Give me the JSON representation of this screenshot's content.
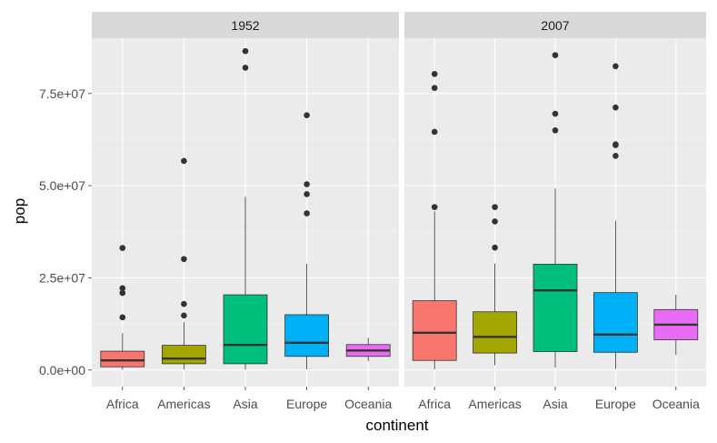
{
  "chart_data": {
    "type": "boxplot",
    "facet_by": "year",
    "xlabel": "continent",
    "ylabel": "pop",
    "ylim": [
      -4500000,
      90000000
    ],
    "y_ticks": [
      {
        "value": 0,
        "label": "0.0e+00"
      },
      {
        "value": 25000000,
        "label": "2.5e+07"
      },
      {
        "value": 50000000,
        "label": "5.0e+07"
      },
      {
        "value": 75000000,
        "label": "7.5e+07"
      }
    ],
    "categories": [
      "Africa",
      "Americas",
      "Asia",
      "Europe",
      "Oceania"
    ],
    "colors": {
      "Africa": "#F8766D",
      "Americas": "#A3A500",
      "Asia": "#00BF7D",
      "Europe": "#00B0F6",
      "Oceania": "#E76BF3"
    },
    "panels": [
      {
        "strip": "1952",
        "boxes": [
          {
            "category": "Africa",
            "whisker_low": 60000,
            "q1": 870000,
            "median": 2600000,
            "q3": 5100000,
            "whisker_high": 10000000,
            "outliers": [
              14300000,
              20900000,
              22200000,
              33100000
            ]
          },
          {
            "category": "Americas",
            "whisker_low": 150000,
            "q1": 1700000,
            "median": 3100000,
            "q3": 6700000,
            "whisker_high": 13000000,
            "outliers": [
              14800000,
              17900000,
              30100000,
              56700000
            ]
          },
          {
            "category": "Asia",
            "whisker_low": 120000,
            "q1": 1700000,
            "median": 6800000,
            "q3": 20400000,
            "whisker_high": 47000000,
            "outliers": [
              82000000,
              86500000
            ]
          },
          {
            "category": "Europe",
            "whisker_low": 150000,
            "q1": 3700000,
            "median": 7400000,
            "q3": 15000000,
            "whisker_high": 28800000,
            "outliers": [
              42500000,
              47700000,
              50400000,
              69100000
            ]
          },
          {
            "category": "Oceania",
            "whisker_low": 2400000,
            "q1": 3700000,
            "median": 5300000,
            "q3": 6900000,
            "whisker_high": 8700000,
            "outliers": []
          }
        ]
      },
      {
        "strip": "2007",
        "boxes": [
          {
            "category": "Africa",
            "whisker_low": 200000,
            "q1": 2600000,
            "median": 10100000,
            "q3": 18800000,
            "whisker_high": 43000000,
            "outliers": [
              44200000,
              64600000,
              76500000,
              80300000
            ]
          },
          {
            "category": "Americas",
            "whisker_low": 1300000,
            "q1": 4600000,
            "median": 9000000,
            "q3": 15800000,
            "whisker_high": 28900000,
            "outliers": [
              33200000,
              40300000,
              44200000
            ]
          },
          {
            "category": "Asia",
            "whisker_low": 700000,
            "q1": 5000000,
            "median": 21600000,
            "q3": 28700000,
            "whisker_high": 49200000,
            "outliers": [
              65000000,
              69500000,
              85400000
            ]
          },
          {
            "category": "Europe",
            "whisker_low": 300000,
            "q1": 4800000,
            "median": 9600000,
            "q3": 21000000,
            "whisker_high": 40500000,
            "outliers": [
              58100000,
              61000000,
              61200000,
              71200000,
              82400000
            ]
          },
          {
            "category": "Oceania",
            "whisker_low": 4100000,
            "q1": 8200000,
            "median": 12300000,
            "q3": 16400000,
            "whisker_high": 20400000,
            "outliers": []
          }
        ]
      }
    ]
  }
}
